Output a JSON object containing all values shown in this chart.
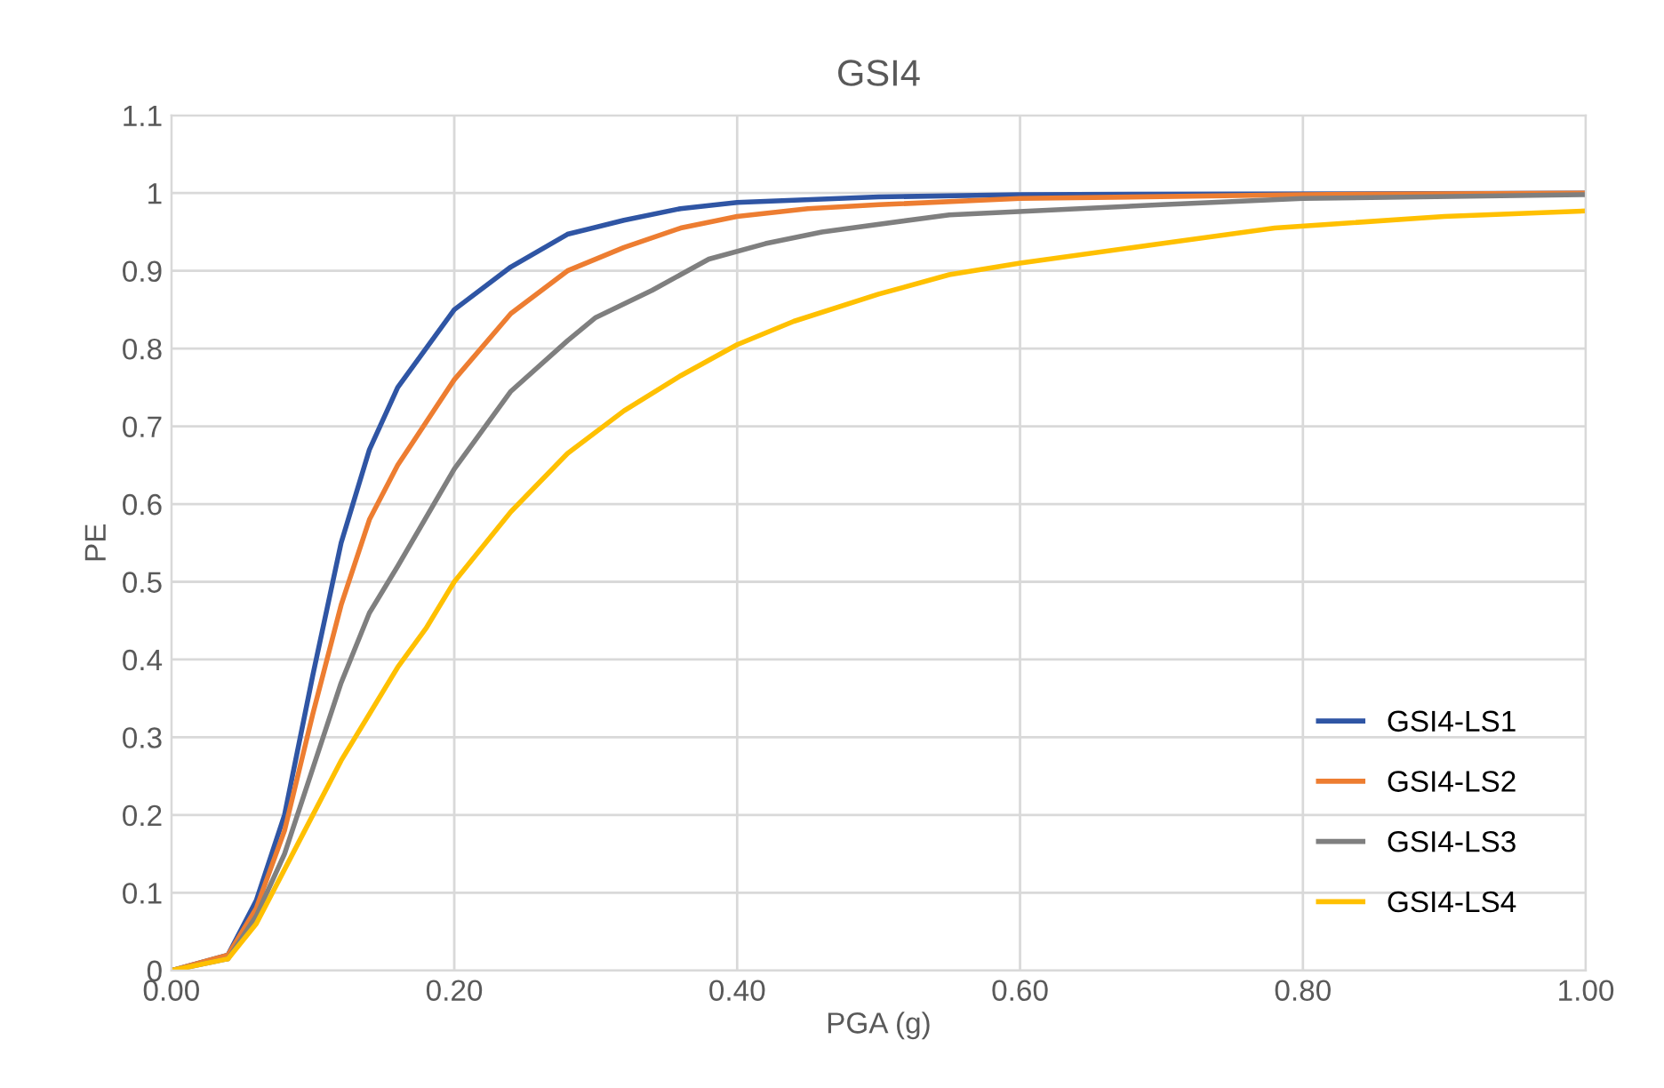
{
  "chart_data": {
    "type": "line",
    "title": "GSI4",
    "xlabel": "PGA (g)",
    "ylabel": "PE",
    "xlim": [
      0,
      1
    ],
    "xticks": [
      {
        "value": 0,
        "label": "0.00"
      },
      {
        "value": 0.2,
        "label": "0.20"
      },
      {
        "value": 0.4,
        "label": "0.40"
      },
      {
        "value": 0.6,
        "label": "0.60"
      },
      {
        "value": 0.8,
        "label": "0.80"
      },
      {
        "value": 1,
        "label": "1.00"
      }
    ],
    "ylim": [
      0,
      1.1
    ],
    "yticks": [
      0,
      0.1,
      0.2,
      0.3,
      0.4,
      0.5,
      0.6,
      0.7,
      0.8,
      0.9,
      1,
      1.1
    ],
    "grid": true,
    "legend": "bottom right",
    "marker": "none",
    "line_style": "solid",
    "series": [
      {
        "name": "GSI4-LS1",
        "color": "#2f55a4",
        "x": [
          0,
          0.04,
          0.06,
          0.08,
          0.1,
          0.12,
          0.14,
          0.16,
          0.18,
          0.2,
          0.24,
          0.28,
          0.32,
          0.36,
          0.4,
          0.5,
          0.6,
          1.0
        ],
        "values": [
          0,
          0.02,
          0.09,
          0.2,
          0.38,
          0.55,
          0.67,
          0.75,
          0.8,
          0.85,
          0.905,
          0.947,
          0.965,
          0.98,
          0.988,
          0.995,
          0.998,
          1.0
        ]
      },
      {
        "name": "GSI4-LS2",
        "color": "#ed7d31",
        "x": [
          0,
          0.04,
          0.06,
          0.08,
          0.1,
          0.12,
          0.14,
          0.16,
          0.2,
          0.24,
          0.28,
          0.32,
          0.36,
          0.4,
          0.45,
          0.5,
          0.6,
          0.8,
          1.0
        ],
        "values": [
          0,
          0.02,
          0.08,
          0.18,
          0.33,
          0.47,
          0.58,
          0.65,
          0.76,
          0.845,
          0.9,
          0.93,
          0.955,
          0.97,
          0.98,
          0.985,
          0.993,
          0.998,
          1.0
        ]
      },
      {
        "name": "GSI4-LS3",
        "color": "#7f7f7f",
        "x": [
          0,
          0.04,
          0.06,
          0.08,
          0.1,
          0.12,
          0.14,
          0.16,
          0.2,
          0.24,
          0.28,
          0.3,
          0.34,
          0.38,
          0.42,
          0.46,
          0.55,
          0.7,
          0.8,
          1.0
        ],
        "values": [
          0,
          0.015,
          0.07,
          0.15,
          0.26,
          0.37,
          0.46,
          0.52,
          0.645,
          0.745,
          0.81,
          0.84,
          0.875,
          0.915,
          0.935,
          0.95,
          0.972,
          0.985,
          0.993,
          0.998
        ]
      },
      {
        "name": "GSI4-LS4",
        "color": "#ffc000",
        "x": [
          0,
          0.04,
          0.06,
          0.08,
          0.1,
          0.12,
          0.14,
          0.16,
          0.18,
          0.2,
          0.24,
          0.28,
          0.32,
          0.36,
          0.4,
          0.44,
          0.5,
          0.55,
          0.6,
          0.7,
          0.78,
          0.9,
          1.0
        ],
        "values": [
          0,
          0.015,
          0.06,
          0.13,
          0.2,
          0.27,
          0.33,
          0.39,
          0.44,
          0.5,
          0.59,
          0.665,
          0.72,
          0.765,
          0.805,
          0.835,
          0.87,
          0.895,
          0.91,
          0.935,
          0.955,
          0.97,
          0.977
        ]
      }
    ]
  }
}
